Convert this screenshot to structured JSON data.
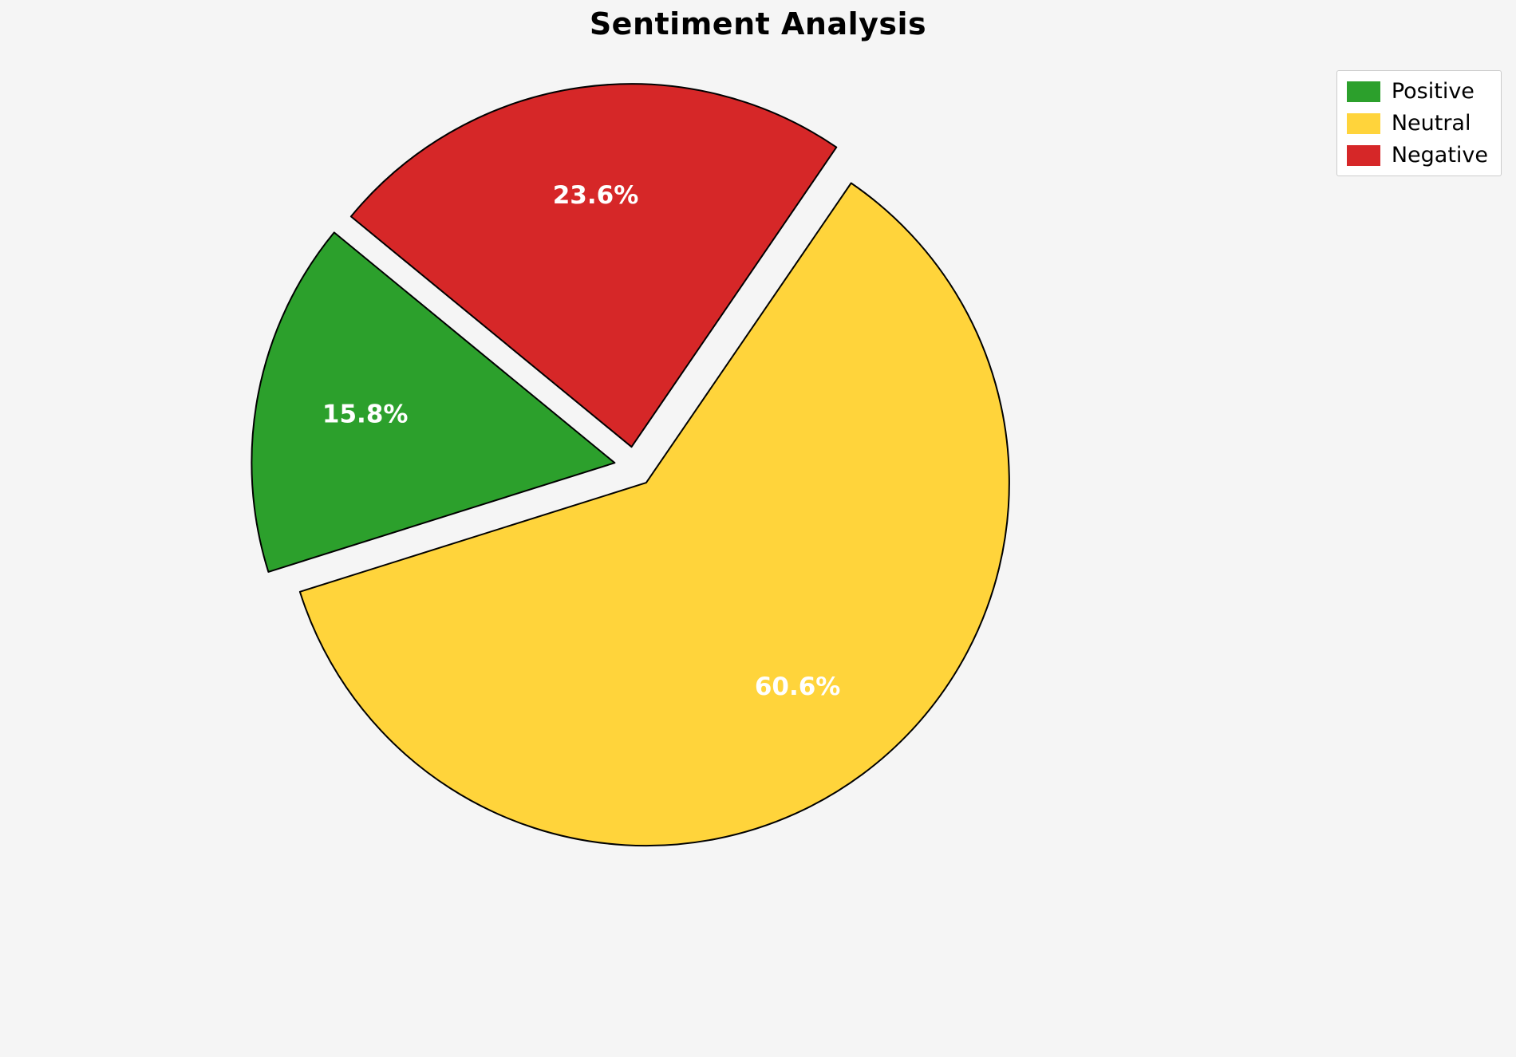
{
  "page": {
    "background_color": "#f5f5f5"
  },
  "chart_data": {
    "type": "pie",
    "title": "Sentiment Analysis",
    "categories": [
      "Positive",
      "Neutral",
      "Negative"
    ],
    "values": [
      15.8,
      60.6,
      23.6
    ],
    "slices": [
      {
        "label": "Positive",
        "value": 15.8,
        "pct_label": "15.8%",
        "color": "#2ca02c"
      },
      {
        "label": "Neutral",
        "value": 60.6,
        "pct_label": "60.6%",
        "color": "#ffd43b"
      },
      {
        "label": "Negative",
        "value": 23.6,
        "pct_label": "23.6%",
        "color": "#d62728"
      }
    ],
    "legend": {
      "position": "upper right",
      "entries": [
        "Positive",
        "Neutral",
        "Negative"
      ]
    },
    "style": {
      "start_angle": 140.6,
      "counterclockwise": true,
      "explode": 0.055,
      "pct_distance": 0.7,
      "edge_color": "#000000",
      "edge_width": 2,
      "pct_label_color": "#ffffff"
    }
  }
}
